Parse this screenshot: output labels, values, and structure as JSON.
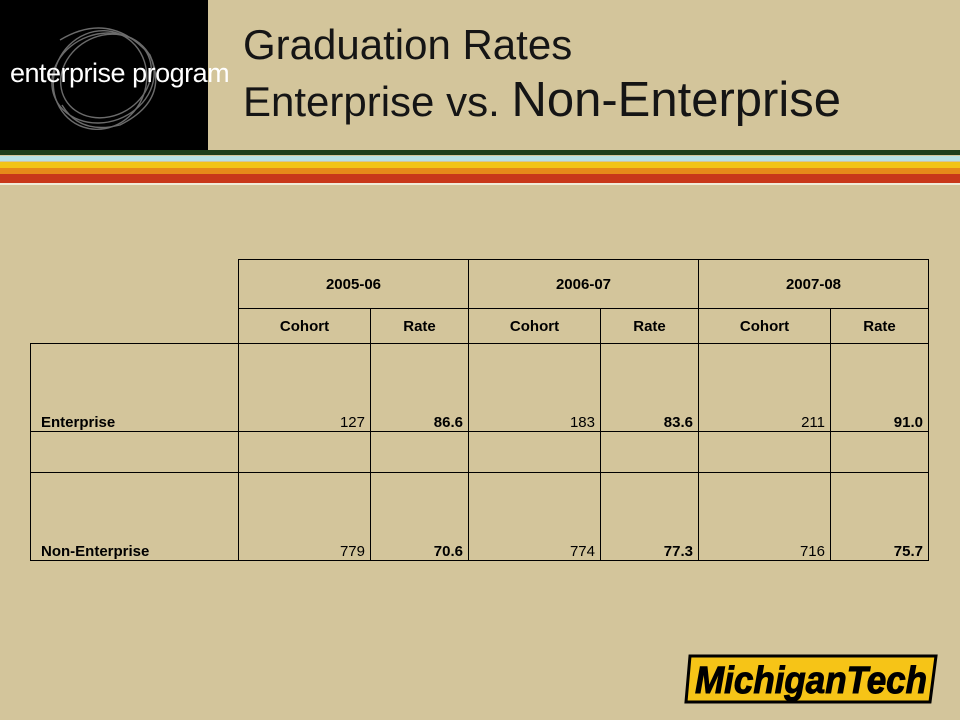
{
  "logo": {
    "text": "enterprise program"
  },
  "title": {
    "line1": "Graduation Rates",
    "line2_a": "Enterprise ",
    "line2_b": "vs. ",
    "line2_c": "Non-Enterprise"
  },
  "colors": {
    "background": "#d3c59b",
    "stripe_dark_green": "#1e3d1a",
    "stripe_light_blue": "#b8e0e4",
    "stripe_yellow": "#f2c417",
    "stripe_orange": "#e68a1a",
    "stripe_red": "#c8381a",
    "brand_gold": "#f6c417"
  },
  "table": {
    "years": [
      "2005-06",
      "2006-07",
      "2007-08"
    ],
    "subheaders": [
      "Cohort",
      "Rate",
      "Cohort",
      "Rate",
      "Cohort",
      "Rate"
    ],
    "rows": [
      {
        "label": "Enterprise",
        "values": [
          "127",
          "86.6",
          "183",
          "83.6",
          "211",
          "91.0"
        ]
      },
      {
        "label": "Non-Enterprise",
        "values": [
          "779",
          "70.6",
          "774",
          "77.3",
          "716",
          "75.7"
        ]
      }
    ]
  },
  "brand": {
    "text": "MichiganTech"
  }
}
